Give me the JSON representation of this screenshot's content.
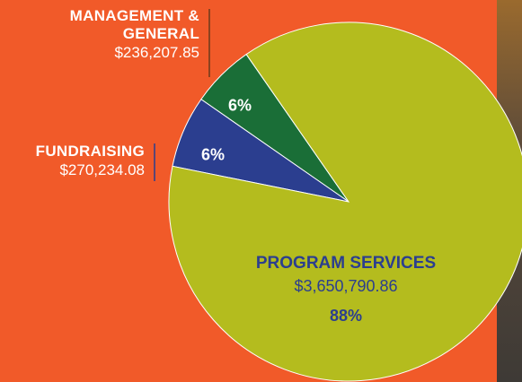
{
  "chart_data": {
    "type": "pie",
    "categories": [
      "MANAGEMENT & GENERAL",
      "FUNDRAISING",
      "PROGRAM SERVICES"
    ],
    "values": [
      6,
      6,
      88
    ],
    "value_labels": [
      "6%",
      "6%",
      "88%"
    ],
    "amounts": [
      236207.85,
      270234.08,
      3650790.86
    ],
    "amount_labels": [
      "$236,207.85",
      "$270,234.08",
      "$3,650,790.86"
    ],
    "colors": [
      "#1a6e37",
      "#2b3e8f",
      "#b4bc1e"
    ]
  }
}
